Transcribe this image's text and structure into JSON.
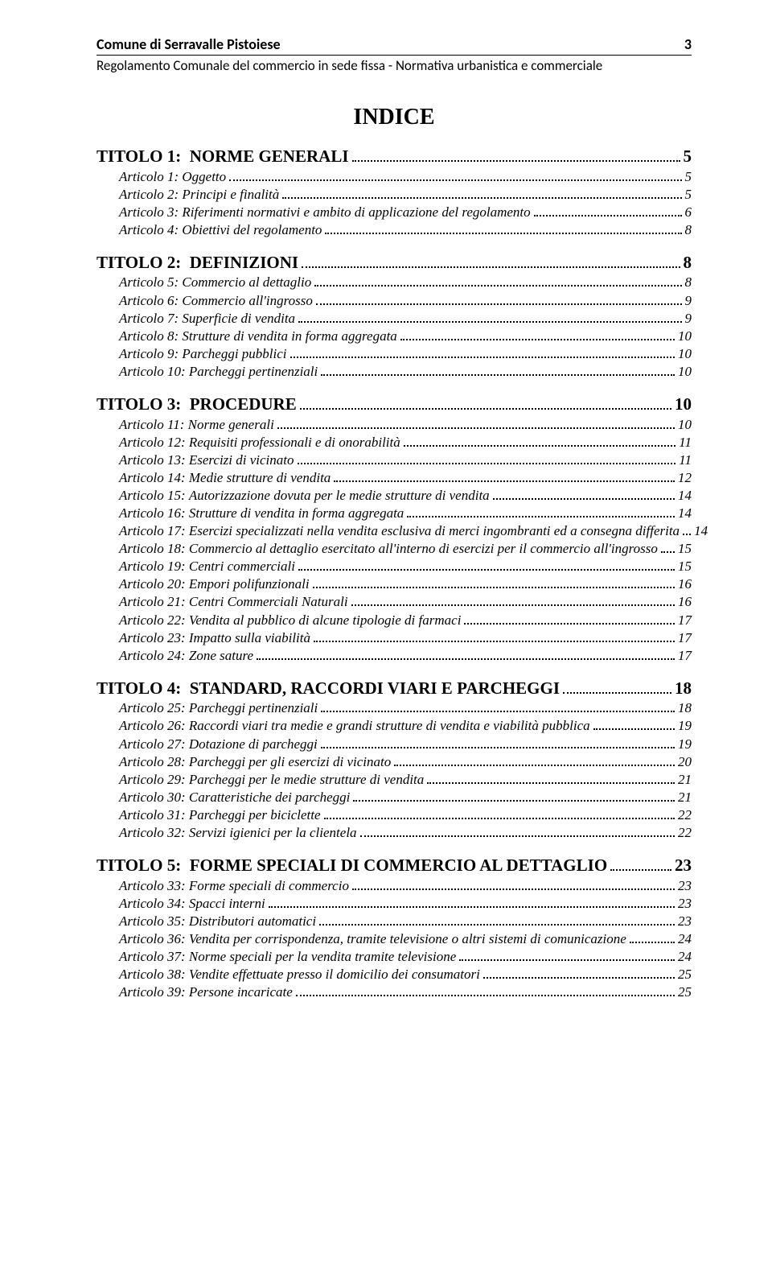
{
  "header": {
    "org": "Comune di Serravalle Pistoiese",
    "page_no": "3",
    "subtitle": "Regolamento Comunale del commercio in sede fissa - Normativa urbanistica e commerciale"
  },
  "title": "INDICE",
  "sections": [
    {
      "head": {
        "label": "TITOLO 1:",
        "text": "NORME GENERALI",
        "page": "5"
      },
      "items": [
        {
          "label": "Articolo 1:",
          "text": "Oggetto",
          "page": "5"
        },
        {
          "label": "Articolo 2:",
          "text": "Principi e finalità",
          "page": "5"
        },
        {
          "label": "Articolo 3:",
          "text": "Riferimenti normativi e ambito di applicazione del regolamento",
          "page": "6"
        },
        {
          "label": "Articolo 4:",
          "text": "Obiettivi del regolamento",
          "page": "8"
        }
      ]
    },
    {
      "head": {
        "label": "TITOLO 2:",
        "text": "DEFINIZIONI",
        "page": "8"
      },
      "items": [
        {
          "label": "Articolo 5:",
          "text": "Commercio al dettaglio",
          "page": "8"
        },
        {
          "label": "Articolo 6:",
          "text": "Commercio all'ingrosso",
          "page": "9"
        },
        {
          "label": "Articolo 7:",
          "text": "Superficie di vendita",
          "page": "9"
        },
        {
          "label": "Articolo 8:",
          "text": "Strutture di vendita in forma aggregata",
          "page": "10"
        },
        {
          "label": "Articolo 9:",
          "text": "Parcheggi pubblici",
          "page": "10"
        },
        {
          "label": "Articolo 10:",
          "text": "Parcheggi pertinenziali",
          "page": "10"
        }
      ]
    },
    {
      "head": {
        "label": "TITOLO 3:",
        "text": "PROCEDURE",
        "page": "10"
      },
      "items": [
        {
          "label": "Articolo 11:",
          "text": "Norme generali",
          "page": "10"
        },
        {
          "label": "Articolo 12:",
          "text": "Requisiti professionali e di onorabilità",
          "page": "11"
        },
        {
          "label": "Articolo 13:",
          "text": "Esercizi di vicinato",
          "page": "11"
        },
        {
          "label": "Articolo 14:",
          "text": "Medie strutture di vendita",
          "page": "12"
        },
        {
          "label": "Articolo 15:",
          "text": "Autorizzazione dovuta per le medie strutture di vendita",
          "page": "14"
        },
        {
          "label": "Articolo 16:",
          "text": "Strutture di vendita in forma aggregata",
          "page": "14"
        },
        {
          "label": "Articolo 17:",
          "text": "Esercizi specializzati nella vendita esclusiva di merci ingombranti ed a consegna differita",
          "page": "14"
        },
        {
          "label": "Articolo 18:",
          "text": "Commercio al dettaglio esercitato all'interno di esercizi per il commercio all'ingrosso",
          "page": "15"
        },
        {
          "label": "Articolo 19:",
          "text": "Centri commerciali",
          "page": "15"
        },
        {
          "label": "Articolo 20:",
          "text": "Empori polifunzionali",
          "page": "16"
        },
        {
          "label": "Articolo 21:",
          "text": "Centri Commerciali Naturali",
          "page": "16"
        },
        {
          "label": "Articolo 22:",
          "text": "Vendita al pubblico di alcune tipologie di farmaci",
          "page": "17"
        },
        {
          "label": "Articolo 23:",
          "text": "Impatto sulla viabilità",
          "page": "17"
        },
        {
          "label": "Articolo 24:",
          "text": "Zone sature",
          "page": "17"
        }
      ]
    },
    {
      "head": {
        "label": "TITOLO 4:",
        "text": "STANDARD, RACCORDI VIARI E PARCHEGGI",
        "page": "18"
      },
      "items": [
        {
          "label": "Articolo 25:",
          "text": "Parcheggi pertinenziali",
          "page": "18"
        },
        {
          "label": "Articolo 26:",
          "text": "Raccordi viari tra medie e grandi strutture di vendita e viabilità pubblica",
          "page": "19"
        },
        {
          "label": "Articolo 27:",
          "text": "Dotazione di parcheggi",
          "page": "19"
        },
        {
          "label": "Articolo 28:",
          "text": "Parcheggi per gli esercizi di vicinato",
          "page": "20"
        },
        {
          "label": "Articolo 29:",
          "text": "Parcheggi per le medie strutture di vendita",
          "page": "21"
        },
        {
          "label": "Articolo 30:",
          "text": "Caratteristiche dei parcheggi",
          "page": "21"
        },
        {
          "label": "Articolo 31:",
          "text": "Parcheggi per biciclette",
          "page": "22"
        },
        {
          "label": "Articolo 32:",
          "text": "Servizi igienici per la clientela",
          "page": "22"
        }
      ]
    },
    {
      "head": {
        "label": "TITOLO 5:",
        "text": "FORME SPECIALI DI COMMERCIO AL DETTAGLIO",
        "page": "23"
      },
      "items": [
        {
          "label": "Articolo 33:",
          "text": "Forme speciali di commercio",
          "page": "23"
        },
        {
          "label": "Articolo 34:",
          "text": "Spacci interni",
          "page": "23"
        },
        {
          "label": "Articolo 35:",
          "text": "Distributori automatici",
          "page": "23"
        },
        {
          "label": "Articolo 36:",
          "text": "Vendita per corrispondenza, tramite televisione o altri sistemi di comunicazione",
          "page": "24"
        },
        {
          "label": "Articolo 37:",
          "text": "Norme speciali per la vendita tramite televisione",
          "page": "24"
        },
        {
          "label": "Articolo 38:",
          "text": "Vendite effettuate presso il domicilio dei consumatori",
          "page": "25"
        },
        {
          "label": "Articolo 39:",
          "text": "Persone incaricate",
          "page": "25"
        }
      ]
    }
  ]
}
